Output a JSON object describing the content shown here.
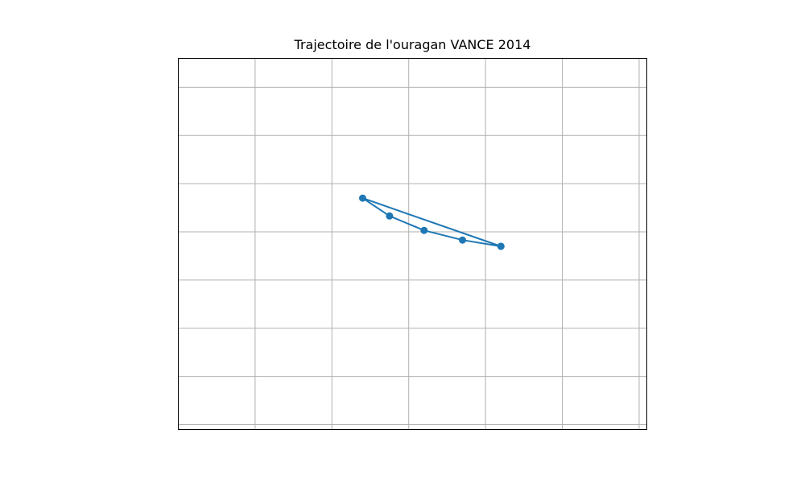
{
  "chart_data": {
    "type": "line",
    "title": "Trajectoire de l'ouragan VANCE 2014",
    "xlabel": "",
    "ylabel": "",
    "grid": true,
    "ticks_labeled": false,
    "xlim": [
      -115.0,
      -108.9
    ],
    "ylim": [
      6.9,
      14.6
    ],
    "series": [
      {
        "color": "#1f77b4",
        "marker": "circle",
        "points": [
          {
            "x": -110.8,
            "y": 10.7
          },
          {
            "x": -111.3,
            "y": 10.83
          },
          {
            "x": -111.8,
            "y": 11.03
          },
          {
            "x": -112.25,
            "y": 11.33
          },
          {
            "x": -112.6,
            "y": 11.7
          },
          {
            "x": -110.8,
            "y": 10.7
          }
        ]
      }
    ]
  },
  "colors": {
    "series": "#1f77b4",
    "grid": "#b0b0b0",
    "axes": "#000000"
  }
}
